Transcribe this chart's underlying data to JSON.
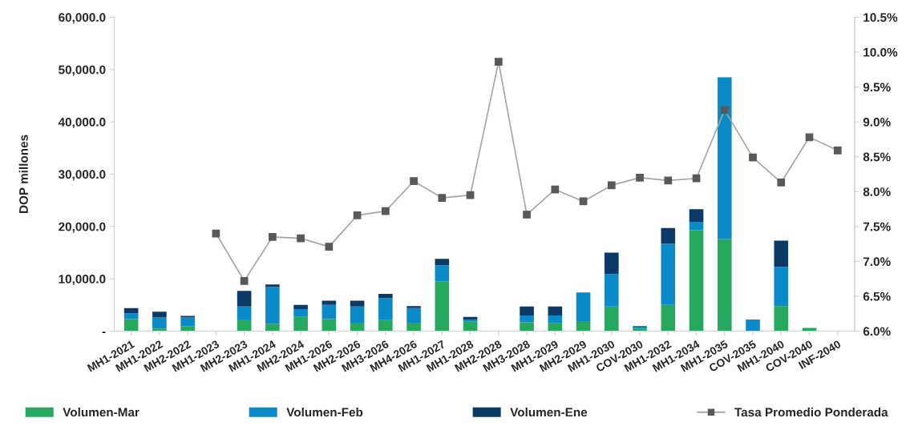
{
  "chart_data": {
    "type": "bar",
    "stacked": true,
    "ylabel": "DOP millones",
    "categories": [
      "MH1-2021",
      "MH1-2022",
      "MH2-2022",
      "MH1-2023",
      "MH2-2023",
      "MH1-2024",
      "MH2-2024",
      "MH1-2026",
      "MH2-2026",
      "MH3-2026",
      "MH4-2026",
      "MH1-2027",
      "MH1-2028",
      "MH2-2028",
      "MH3-2028",
      "MH1-2029",
      "MH2-2029",
      "MH1-2030",
      "COV-2030",
      "MH1-2032",
      "MH1-2034",
      "MH1-2035",
      "COV-2035",
      "MH1-2040",
      "COV-2040",
      "INF-2040"
    ],
    "series": [
      {
        "name": "Volumen-Mar",
        "color": "#27a85f",
        "values": [
          2300,
          500,
          900,
          null,
          2200,
          1400,
          2700,
          2300,
          1600,
          2100,
          1600,
          9500,
          1800,
          null,
          1700,
          1500,
          1900,
          4700,
          500,
          5000,
          19300,
          17600,
          null,
          4800,
          600,
          null
        ]
      },
      {
        "name": "Volumen-Feb",
        "color": "#0a8ac9",
        "values": [
          1100,
          2100,
          1700,
          null,
          2500,
          7000,
          1500,
          2700,
          3100,
          4200,
          2800,
          3100,
          400,
          null,
          1300,
          1500,
          5500,
          6200,
          500,
          11700,
          1600,
          30900,
          2200,
          7500,
          null,
          null
        ]
      },
      {
        "name": "Volumen-Ene",
        "color": "#0b3a66",
        "values": [
          1000,
          1100,
          300,
          null,
          3000,
          500,
          800,
          800,
          1100,
          800,
          400,
          1200,
          500,
          null,
          1700,
          1700,
          null,
          4100,
          null,
          3000,
          2400,
          null,
          null,
          5000,
          null,
          null
        ]
      },
      {
        "name": "Tasa Promedio Ponderada",
        "type": "line",
        "axis": "y2",
        "color": "#595959",
        "marker": "square",
        "values": [
          null,
          null,
          null,
          7.4,
          6.72,
          7.35,
          7.33,
          7.21,
          7.66,
          7.72,
          8.15,
          7.91,
          7.95,
          9.86,
          7.67,
          8.03,
          7.86,
          8.09,
          8.2,
          8.16,
          8.19,
          9.17,
          8.49,
          8.13,
          8.78,
          8.59
        ]
      }
    ],
    "ylim": [
      0,
      60000
    ],
    "yticks": [
      {
        "value": 0,
        "label": "-"
      },
      {
        "value": 10000,
        "label": "10,000.0"
      },
      {
        "value": 20000,
        "label": "20,000.0"
      },
      {
        "value": 30000,
        "label": "30,000.0"
      },
      {
        "value": 40000,
        "label": "40,000.0"
      },
      {
        "value": 50000,
        "label": "50,000.0"
      },
      {
        "value": 60000,
        "label": "60,000.0"
      }
    ],
    "y2lim": [
      6.0,
      10.5
    ],
    "y2ticks": [
      {
        "value": 6.0,
        "label": "6.0%"
      },
      {
        "value": 6.5,
        "label": "6.5%"
      },
      {
        "value": 7.0,
        "label": "7.0%"
      },
      {
        "value": 7.5,
        "label": "7.5%"
      },
      {
        "value": 8.0,
        "label": "8.0%"
      },
      {
        "value": 8.5,
        "label": "8.5%"
      },
      {
        "value": 9.0,
        "label": "9.0%"
      },
      {
        "value": 9.5,
        "label": "9.5%"
      },
      {
        "value": 10.0,
        "label": "10.0%"
      },
      {
        "value": 10.5,
        "label": "10.5%"
      }
    ],
    "grid": false,
    "legend": "bottom"
  }
}
